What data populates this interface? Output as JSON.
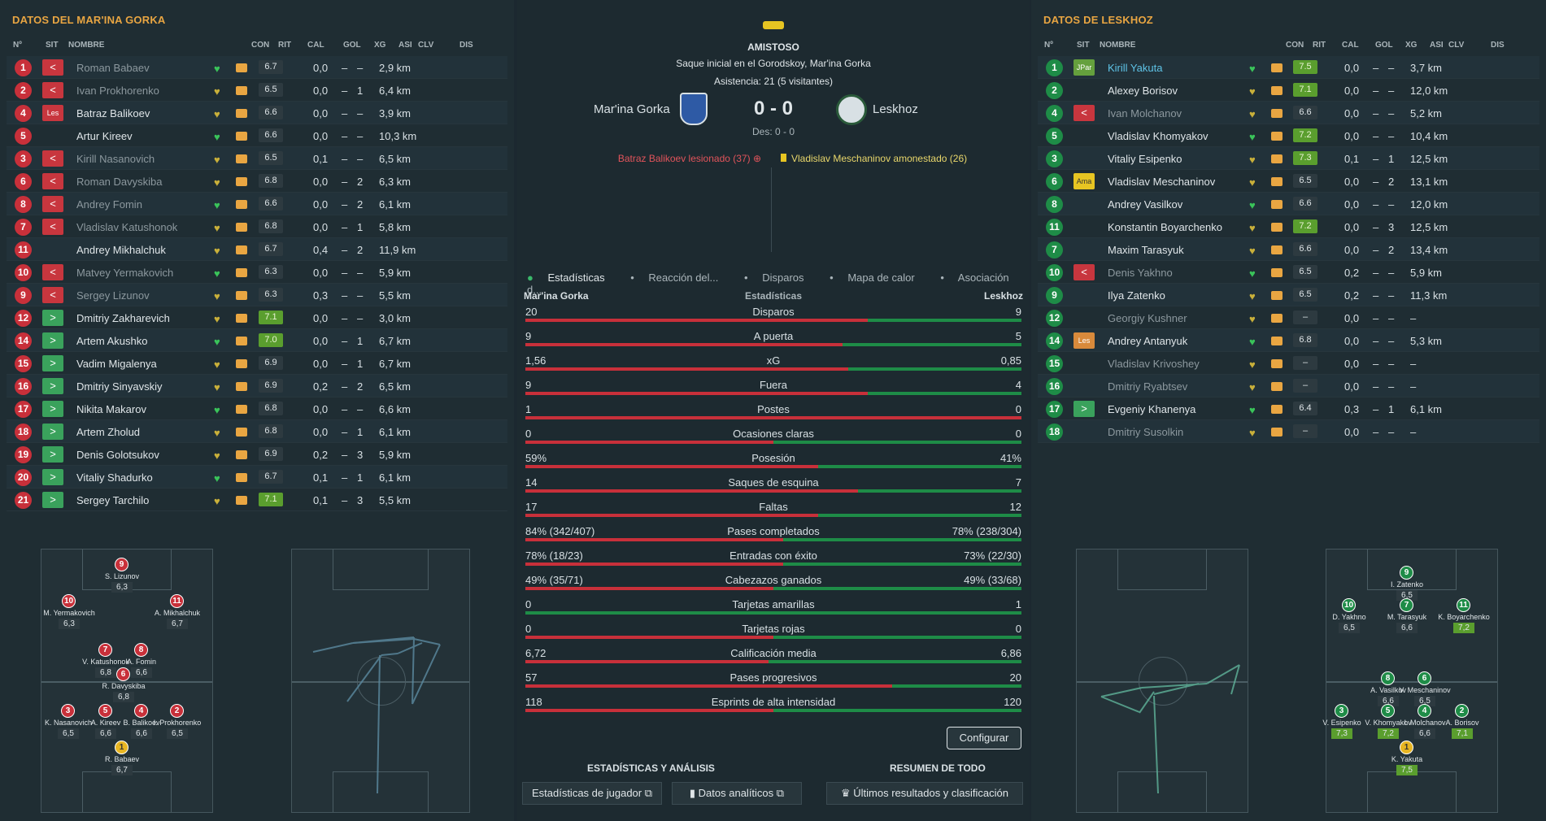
{
  "left": {
    "title": "DATOS DEL MAR'INA GORKA",
    "headers": {
      "num": "Nº",
      "sit": "SIT",
      "nombre": "NOMBRE",
      "con": "CON",
      "rit": "RIT",
      "cal": "CAL",
      "gol": "GOL",
      "xg": "XG",
      "asi": "ASI",
      "clv": "CLV",
      "dis": "DIS"
    },
    "players": [
      {
        "n": "1",
        "sit": "<",
        "name": "Roman Babaev",
        "cal": "6.7",
        "xg": "0,0",
        "asi": "–",
        "clv": "–",
        "dis": "2,9 km"
      },
      {
        "n": "2",
        "sit": "<",
        "name": "Ivan Prokhorenko",
        "cal": "6.5",
        "xg": "0,0",
        "asi": "–",
        "clv": "1",
        "dis": "6,4 km"
      },
      {
        "n": "4",
        "sit": "Les",
        "name": "Batraz Balikoev",
        "cal": "6.6",
        "xg": "0,0",
        "asi": "–",
        "clv": "–",
        "dis": "3,9 km"
      },
      {
        "n": "5",
        "sit": "",
        "name": "Artur Kireev",
        "cal": "6.6",
        "xg": "0,0",
        "asi": "–",
        "clv": "–",
        "dis": "10,3 km"
      },
      {
        "n": "3",
        "sit": "<",
        "name": "Kirill Nasanovich",
        "cal": "6.5",
        "xg": "0,1",
        "asi": "–",
        "clv": "–",
        "dis": "6,5 km"
      },
      {
        "n": "6",
        "sit": "<",
        "name": "Roman Davyskiba",
        "cal": "6.8",
        "xg": "0,0",
        "asi": "–",
        "clv": "2",
        "dis": "6,3 km"
      },
      {
        "n": "8",
        "sit": "<",
        "name": "Andrey Fomin",
        "cal": "6.6",
        "xg": "0,0",
        "asi": "–",
        "clv": "2",
        "dis": "6,1 km"
      },
      {
        "n": "7",
        "sit": "<",
        "name": "Vladislav Katushonok",
        "cal": "6.8",
        "xg": "0,0",
        "asi": "–",
        "clv": "1",
        "dis": "5,8 km"
      },
      {
        "n": "11",
        "sit": "",
        "name": "Andrey Mikhalchuk",
        "cal": "6.7",
        "xg": "0,4",
        "asi": "–",
        "clv": "2",
        "dis": "11,9 km"
      },
      {
        "n": "10",
        "sit": "<",
        "name": "Matvey Yermakovich",
        "cal": "6.3",
        "xg": "0,0",
        "asi": "–",
        "clv": "–",
        "dis": "5,9 km"
      },
      {
        "n": "9",
        "sit": "<",
        "name": "Sergey Lizunov",
        "cal": "6.3",
        "xg": "0,3",
        "asi": "–",
        "clv": "–",
        "dis": "5,5 km"
      },
      {
        "n": "12",
        "sit": ">",
        "name": "Dmitriy Zakharevich",
        "cal": "7.1",
        "xg": "0,0",
        "asi": "–",
        "clv": "–",
        "dis": "3,0 km"
      },
      {
        "n": "14",
        "sit": ">",
        "name": "Artem Akushko",
        "cal": "7.0",
        "xg": "0,0",
        "asi": "–",
        "clv": "1",
        "dis": "6,7 km"
      },
      {
        "n": "15",
        "sit": ">",
        "name": "Vadim Migalenya",
        "cal": "6.9",
        "xg": "0,0",
        "asi": "–",
        "clv": "1",
        "dis": "6,7 km"
      },
      {
        "n": "16",
        "sit": ">",
        "name": "Dmitriy Sinyavskiy",
        "cal": "6.9",
        "xg": "0,2",
        "asi": "–",
        "clv": "2",
        "dis": "6,5 km"
      },
      {
        "n": "17",
        "sit": ">",
        "name": "Nikita Makarov",
        "cal": "6.8",
        "xg": "0,0",
        "asi": "–",
        "clv": "–",
        "dis": "6,6 km"
      },
      {
        "n": "18",
        "sit": ">",
        "name": "Artem Zholud",
        "cal": "6.8",
        "xg": "0,0",
        "asi": "–",
        "clv": "1",
        "dis": "6,1 km"
      },
      {
        "n": "19",
        "sit": ">",
        "name": "Denis Golotsukov",
        "cal": "6.9",
        "xg": "0,2",
        "asi": "–",
        "clv": "3",
        "dis": "5,9 km"
      },
      {
        "n": "20",
        "sit": ">",
        "name": "Vitaliy Shadurko",
        "cal": "6.7",
        "xg": "0,1",
        "asi": "–",
        "clv": "1",
        "dis": "6,1 km"
      },
      {
        "n": "21",
        "sit": ">",
        "name": "Sergey Tarchilo",
        "cal": "7.1",
        "xg": "0,1",
        "asi": "–",
        "clv": "3",
        "dis": "5,5 km"
      }
    ],
    "formation": [
      {
        "n": "9",
        "label": "S. Lizunov",
        "rating": "6,3"
      },
      {
        "n": "10",
        "label": "M. Yermakovich",
        "rating": "6,3"
      },
      {
        "n": "11",
        "label": "A. Mikhalchuk",
        "rating": "6,7"
      },
      {
        "n": "7",
        "label": "V. Katushonok",
        "rating": "6,8"
      },
      {
        "n": "8",
        "label": "A. Fomin",
        "rating": "6,6"
      },
      {
        "n": "6",
        "label": "R. Davyskiba",
        "rating": "6,8"
      },
      {
        "n": "3",
        "label": "K. Nasanovich",
        "rating": "6,5"
      },
      {
        "n": "5",
        "label": "A. Kireev",
        "rating": "6,6"
      },
      {
        "n": "4",
        "label": "B. Balikoev",
        "rating": "6,6"
      },
      {
        "n": "2",
        "label": "I. Prokhorenko",
        "rating": "6,5"
      },
      {
        "n": "1",
        "label": "R. Babaev",
        "rating": "6,7"
      }
    ]
  },
  "center": {
    "badge": "AMISTOSO",
    "kickoff": "Saque inicial en el Gorodskoy, Mar'ina Gorka",
    "attendance": "Asistencia: 21 (5 visitantes)",
    "home": "Mar'ina Gorka",
    "away": "Leskhoz",
    "score": "0 - 0",
    "ht": "Des: 0 - 0",
    "event_home": "Batraz Balikoev lesionado (37)",
    "event_away": "Vladislav Meschaninov amonestado (26)",
    "tabs": [
      "Estadísticas",
      "Reacción del...",
      "Disparos",
      "Mapa de calor",
      "Asociación d..."
    ],
    "stats_title": "Estadísticas",
    "home_label": "Mar'ina Gorka",
    "away_label": "Leskhoz",
    "stats": [
      {
        "l": "20",
        "m": "Disparos",
        "r": "9",
        "p": 0.69
      },
      {
        "l": "9",
        "m": "A puerta",
        "r": "5",
        "p": 0.64
      },
      {
        "l": "1,56",
        "m": "xG",
        "r": "0,85",
        "p": 0.65
      },
      {
        "l": "9",
        "m": "Fuera",
        "r": "4",
        "p": 0.69
      },
      {
        "l": "1",
        "m": "Postes",
        "r": "0",
        "p": 1.0
      },
      {
        "l": "0",
        "m": "Ocasiones claras",
        "r": "0",
        "p": 0.5
      },
      {
        "l": "59%",
        "m": "Posesión",
        "r": "41%",
        "p": 0.59
      },
      {
        "l": "14",
        "m": "Saques de esquina",
        "r": "7",
        "p": 0.67
      },
      {
        "l": "17",
        "m": "Faltas",
        "r": "12",
        "p": 0.59
      },
      {
        "l": "84% (342/407)",
        "m": "Pases completados",
        "r": "78% (238/304)",
        "p": 0.52
      },
      {
        "l": "78% (18/23)",
        "m": "Entradas con éxito",
        "r": "73% (22/30)",
        "p": 0.52
      },
      {
        "l": "49% (35/71)",
        "m": "Cabezazos ganados",
        "r": "49% (33/68)",
        "p": 0.5
      },
      {
        "l": "0",
        "m": "Tarjetas amarillas",
        "r": "1",
        "p": 0.0
      },
      {
        "l": "0",
        "m": "Tarjetas rojas",
        "r": "0",
        "p": 0.5
      },
      {
        "l": "6,72",
        "m": "Calificación media",
        "r": "6,86",
        "p": 0.49
      },
      {
        "l": "57",
        "m": "Pases progresivos",
        "r": "20",
        "p": 0.74
      },
      {
        "l": "118",
        "m": "Esprints de alta intensidad",
        "r": "120",
        "p": 0.5
      }
    ],
    "configure": "Configurar",
    "footer_left": "ESTADÍSTICAS Y ANÁLISIS",
    "footer_right": "RESUMEN DE TODO",
    "btn1": "Estadísticas de jugador",
    "btn2": "Datos analíticos",
    "btn3": "Últimos resultados y clasificación"
  },
  "right": {
    "title": "DATOS DE LESKHOZ",
    "players": [
      {
        "n": "1",
        "sit": "JPar",
        "name": "Kirill Yakuta",
        "cal": "7.5",
        "xg": "0,0",
        "asi": "–",
        "clv": "–",
        "dis": "3,7 km"
      },
      {
        "n": "2",
        "sit": "",
        "name": "Alexey Borisov",
        "cal": "7.1",
        "xg": "0,0",
        "asi": "–",
        "clv": "–",
        "dis": "12,0 km"
      },
      {
        "n": "4",
        "sit": "<",
        "name": "Ivan Molchanov",
        "cal": "6.6",
        "xg": "0,0",
        "asi": "–",
        "clv": "–",
        "dis": "5,2 km"
      },
      {
        "n": "5",
        "sit": "",
        "name": "Vladislav Khomyakov",
        "cal": "7.2",
        "xg": "0,0",
        "asi": "–",
        "clv": "–",
        "dis": "10,4 km"
      },
      {
        "n": "3",
        "sit": "",
        "name": "Vitaliy Esipenko",
        "cal": "7.3",
        "xg": "0,1",
        "asi": "–",
        "clv": "1",
        "dis": "12,5 km"
      },
      {
        "n": "6",
        "sit": "Ama",
        "name": "Vladislav Meschaninov",
        "cal": "6.5",
        "xg": "0,0",
        "asi": "–",
        "clv": "2",
        "dis": "13,1 km"
      },
      {
        "n": "8",
        "sit": "",
        "name": "Andrey Vasilkov",
        "cal": "6.6",
        "xg": "0,0",
        "asi": "–",
        "clv": "–",
        "dis": "12,0 km"
      },
      {
        "n": "11",
        "sit": "",
        "name": "Konstantin Boyarchenko",
        "cal": "7.2",
        "xg": "0,0",
        "asi": "–",
        "clv": "3",
        "dis": "12,5 km"
      },
      {
        "n": "7",
        "sit": "",
        "name": "Maxim Tarasyuk",
        "cal": "6.6",
        "xg": "0,0",
        "asi": "–",
        "clv": "2",
        "dis": "13,4 km"
      },
      {
        "n": "10",
        "sit": "<",
        "name": "Denis Yakhno",
        "cal": "6.5",
        "xg": "0,2",
        "asi": "–",
        "clv": "–",
        "dis": "5,9 km"
      },
      {
        "n": "9",
        "sit": "",
        "name": "Ilya Zatenko",
        "cal": "6.5",
        "xg": "0,2",
        "asi": "–",
        "clv": "–",
        "dis": "11,3 km"
      },
      {
        "n": "12",
        "sit": "",
        "name": "Georgiy Kushner",
        "cal": "–",
        "xg": "0,0",
        "asi": "–",
        "clv": "–",
        "dis": "–"
      },
      {
        "n": "14",
        "sit": "Les",
        "name": "Andrey Antanyuk",
        "cal": "6.8",
        "xg": "0,0",
        "asi": "–",
        "clv": "–",
        "dis": "5,3 km"
      },
      {
        "n": "15",
        "sit": "",
        "name": "Vladislav Krivoshey",
        "cal": "–",
        "xg": "0,0",
        "asi": "–",
        "clv": "–",
        "dis": "–"
      },
      {
        "n": "16",
        "sit": "",
        "name": "Dmitriy Ryabtsev",
        "cal": "–",
        "xg": "0,0",
        "asi": "–",
        "clv": "–",
        "dis": "–"
      },
      {
        "n": "17",
        "sit": ">",
        "name": "Evgeniy Khanenya",
        "cal": "6.4",
        "xg": "0,3",
        "asi": "–",
        "clv": "1",
        "dis": "6,1 km"
      },
      {
        "n": "18",
        "sit": "",
        "name": "Dmitriy Susolkin",
        "cal": "–",
        "xg": "0,0",
        "asi": "–",
        "clv": "–",
        "dis": "–"
      }
    ],
    "formation": [
      {
        "n": "9",
        "label": "I. Zatenko",
        "rating": "6,5"
      },
      {
        "n": "10",
        "label": "D. Yakhno",
        "rating": "6,5"
      },
      {
        "n": "7",
        "label": "M. Tarasyuk",
        "rating": "6,6"
      },
      {
        "n": "11",
        "label": "K. Boyarchenko",
        "rating": "7,2"
      },
      {
        "n": "8",
        "label": "A. Vasilkov",
        "rating": "6,6"
      },
      {
        "n": "6",
        "label": "V. Meschaninov",
        "rating": "6,5"
      },
      {
        "n": "3",
        "label": "V. Esipenko",
        "rating": "7,3"
      },
      {
        "n": "5",
        "label": "V. Khomyakov",
        "rating": "7,2"
      },
      {
        "n": "4",
        "label": "I. Molchanov",
        "rating": "6,6"
      },
      {
        "n": "2",
        "label": "A. Borisov",
        "rating": "7,1"
      },
      {
        "n": "1",
        "label": "K. Yakuta",
        "rating": "7,5"
      }
    ]
  }
}
